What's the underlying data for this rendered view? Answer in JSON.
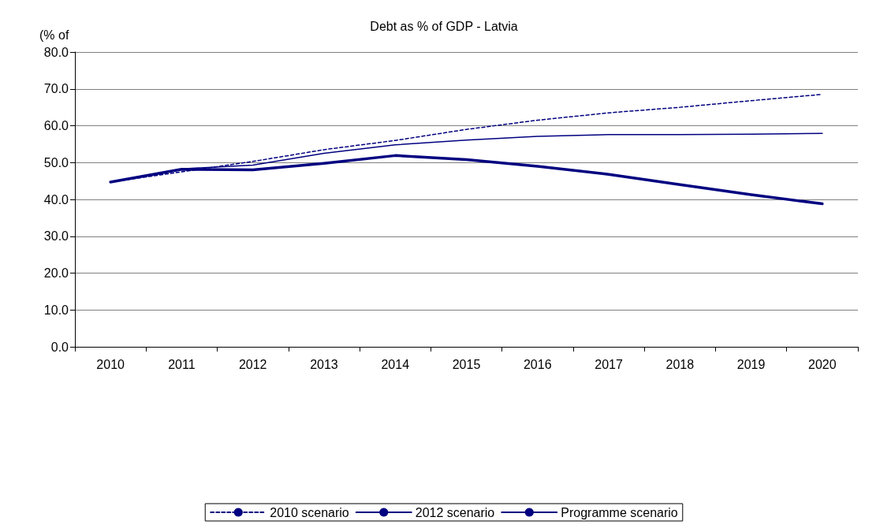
{
  "chart_data": {
    "type": "line",
    "title": "Debt as % of GDP - Latvia",
    "ylabel": "(% of",
    "categories": [
      "2010",
      "2011",
      "2012",
      "2013",
      "2014",
      "2015",
      "2016",
      "2017",
      "2018",
      "2019",
      "2020"
    ],
    "series": [
      {
        "name": "2010 scenario",
        "color": "#000080",
        "line_style": "dotted",
        "values": [
          44.7,
          47.5,
          50.3,
          53.5,
          56.0,
          59.0,
          61.5,
          63.5,
          65.0,
          66.8,
          68.5
        ]
      },
      {
        "name": "2012 scenario",
        "color": "#000080",
        "line_style": "solid",
        "values": [
          44.7,
          48.3,
          49.3,
          52.5,
          54.8,
          56.1,
          57.1,
          57.6,
          57.6,
          57.7,
          57.9
        ]
      },
      {
        "name": "Programme scenario",
        "color": "#000080",
        "line_style": "solid",
        "values": [
          44.7,
          48.2,
          48.0,
          49.8,
          51.9,
          50.8,
          49.0,
          46.8,
          44.0,
          41.3,
          38.8
        ]
      }
    ],
    "ylim": [
      0,
      80
    ],
    "yticks": [
      {
        "value": 0,
        "label": "0.0"
      },
      {
        "value": 10,
        "label": "10.0"
      },
      {
        "value": 20,
        "label": "20.0"
      },
      {
        "value": 30,
        "label": "30.0"
      },
      {
        "value": 40,
        "label": "40.0"
      },
      {
        "value": 50,
        "label": "50.0"
      },
      {
        "value": 60,
        "label": "60.0"
      },
      {
        "value": 70,
        "label": "70.0"
      },
      {
        "value": 80,
        "label": "80.0"
      }
    ],
    "grid": "y",
    "legend": "bottom",
    "marker": "none"
  }
}
